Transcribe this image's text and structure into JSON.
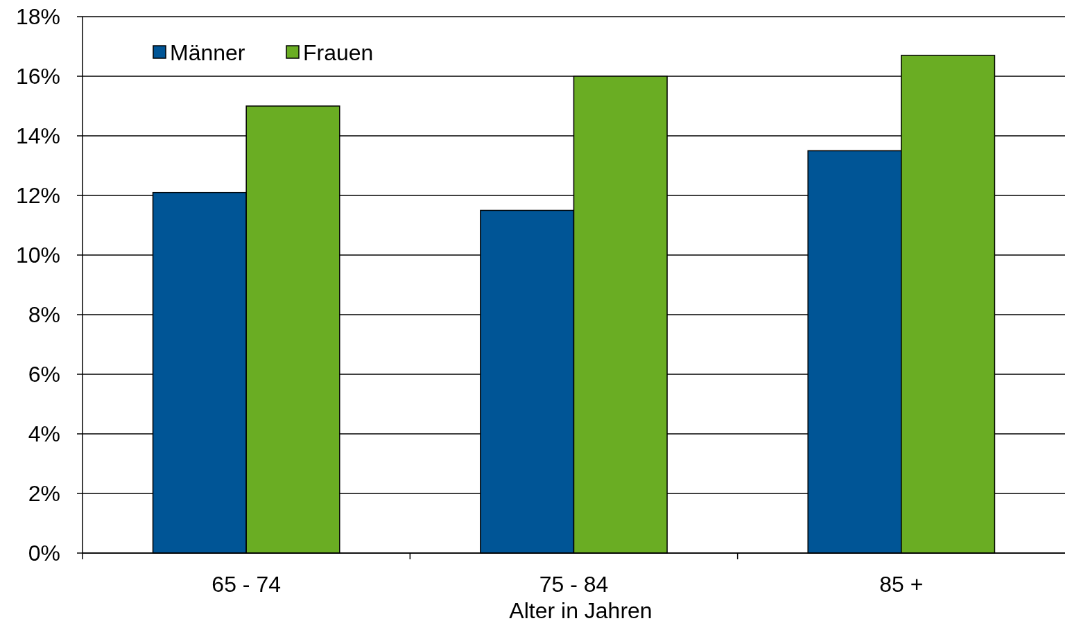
{
  "chart_data": {
    "type": "bar",
    "xlabel": "Alter in Jahren",
    "categories": [
      "65 - 74",
      "75 - 84",
      "85 +"
    ],
    "series": [
      {
        "name": "Männer",
        "color": "#005596",
        "values": [
          12.1,
          11.5,
          13.5
        ]
      },
      {
        "name": "Frauen",
        "color": "#6aad23",
        "values": [
          15.0,
          16.0,
          16.7
        ]
      }
    ],
    "ylim": [
      0,
      18
    ],
    "yticks": [
      {
        "value": 0,
        "label": "0%"
      },
      {
        "value": 2,
        "label": "2%"
      },
      {
        "value": 4,
        "label": "4%"
      },
      {
        "value": 6,
        "label": "6%"
      },
      {
        "value": 8,
        "label": "8%"
      },
      {
        "value": 10,
        "label": "10%"
      },
      {
        "value": 12,
        "label": "12%"
      },
      {
        "value": 14,
        "label": "14%"
      },
      {
        "value": 16,
        "label": "16%"
      },
      {
        "value": 18,
        "label": "18%"
      }
    ],
    "grid": "y",
    "legend": "top left"
  }
}
